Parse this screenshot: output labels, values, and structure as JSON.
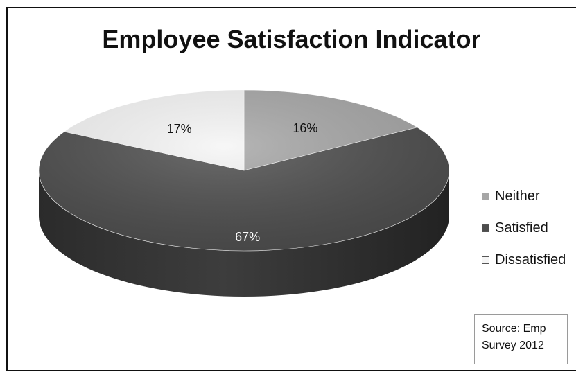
{
  "chart_data": {
    "type": "pie",
    "title": "Employee Satisfaction Indicator",
    "slices": [
      {
        "label": "Neither",
        "value": 16,
        "display": "16%",
        "color": "#a6a6a6"
      },
      {
        "label": "Satisfied",
        "value": 67,
        "display": "67%",
        "color": "#4d4d4d"
      },
      {
        "label": "Dissatisfied",
        "value": 17,
        "display": "17%",
        "color": "#f5f5f5"
      }
    ],
    "legend_position": "right",
    "annotation": {
      "line1": "Source: Emp",
      "line2": "Survey 2012"
    }
  }
}
